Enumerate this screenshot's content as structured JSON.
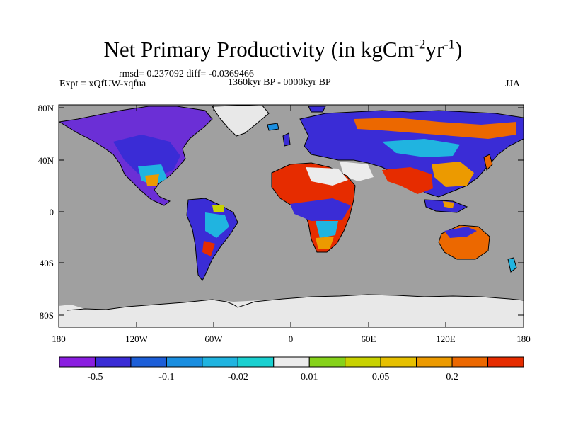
{
  "title": {
    "main": "Net Primary Productivity (in kgCm",
    "exp1": "-2",
    "mid": "yr",
    "exp2": "-1",
    "close": ")"
  },
  "stats": "rmsd= 0.237092 diff= -0.0369466",
  "experiment": "Expt = xQfUW-xqfua",
  "period": "1360kyr BP - 0000kyr BP",
  "season": "JJA",
  "axes": {
    "lat_ticks": [
      "80N",
      "40N",
      "0",
      "40S",
      "80S"
    ],
    "lon_ticks": [
      "180",
      "120W",
      "60W",
      "0",
      "60E",
      "120E",
      "180"
    ]
  },
  "colors": {
    "ocean": "#a0a0a0",
    "ice": "#e8e8e8",
    "coast": "#000000"
  },
  "colorbar": {
    "colors": [
      "#8a1ee0",
      "#3a2cd6",
      "#1c5ed8",
      "#1a8ee0",
      "#20b4e0",
      "#1ad0d0",
      "#ececec",
      "#86d21a",
      "#c8d200",
      "#e6c000",
      "#ec9a00",
      "#ec6800",
      "#e62c00"
    ],
    "labels": [
      "-0.5",
      "-0.1",
      "-0.02",
      "0.01",
      "0.05",
      "0.2"
    ]
  }
}
